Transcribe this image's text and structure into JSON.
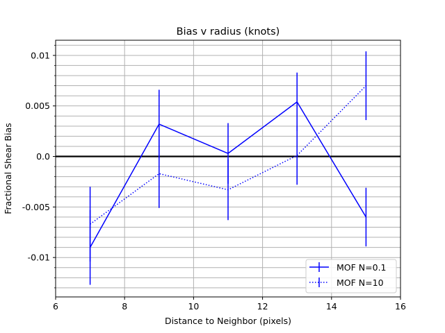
{
  "chart_data": {
    "type": "line",
    "title": "Bias v radius (knots)",
    "xlabel": "Distance to Neighbor (pixels)",
    "ylabel": "Fractional Shear Bias",
    "xlim": [
      6,
      16
    ],
    "ylim": [
      -0.0139,
      0.0115
    ],
    "x_ticks": [
      6,
      8,
      10,
      12,
      14,
      16
    ],
    "x_tick_labels": [
      "6",
      "8",
      "10",
      "12",
      "14",
      "16"
    ],
    "y_ticks": [
      -0.01,
      -0.005,
      0.0,
      0.005,
      0.01
    ],
    "y_tick_labels": [
      "-0.01",
      "-0.005",
      "0.0",
      "0.005",
      "0.01"
    ],
    "y_minor_ticks": [
      -0.013,
      -0.012,
      -0.011,
      -0.009,
      -0.008,
      -0.007,
      -0.006,
      -0.004,
      -0.003,
      -0.002,
      -0.001,
      0.001,
      0.002,
      0.003,
      0.004,
      0.006,
      0.007,
      0.008,
      0.009,
      0.011
    ],
    "grid": true,
    "zero_line": 0.0,
    "legend_position": "lower right",
    "series": [
      {
        "name": "MOF N=0.1",
        "style": "solid",
        "color": "#0000ff",
        "x": [
          7,
          9,
          11,
          13,
          15
        ],
        "y": [
          -0.009,
          0.0032,
          0.0003,
          0.0054,
          -0.006
        ],
        "yerr": [
          0.0037,
          0.0034,
          0.003,
          0.0029,
          0.0029
        ]
      },
      {
        "name": "MOF N=10",
        "style": "dotted",
        "color": "#0000ff",
        "x": [
          7,
          9,
          11,
          13,
          15
        ],
        "y": [
          -0.0067,
          -0.0017,
          -0.0033,
          0.0001,
          0.007
        ],
        "yerr": [
          0.0037,
          0.0034,
          0.003,
          0.0029,
          0.0034
        ]
      }
    ]
  }
}
